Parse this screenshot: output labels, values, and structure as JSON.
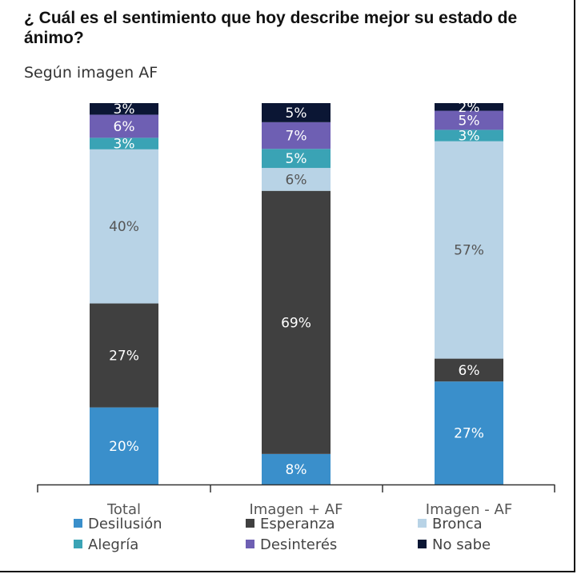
{
  "chart_data": {
    "type": "bar",
    "stacked": true,
    "title": "¿ Cuál es el sentimiento que hoy describe mejor su estado de ánimo?",
    "subtitle": "Según imagen AF",
    "categories": [
      "Total",
      "Imagen + AF",
      "Imagen - AF"
    ],
    "series": [
      {
        "name": "Desilusión",
        "color": "#3a8fcb",
        "values": [
          20,
          8,
          27
        ],
        "labels": [
          "20%",
          "8%",
          "27%"
        ]
      },
      {
        "name": "Esperanza",
        "color": "#404040",
        "values": [
          27,
          69,
          6
        ],
        "labels": [
          "27%",
          "69%",
          "6%"
        ]
      },
      {
        "name": "Bronca",
        "color": "#b8d3e6",
        "values": [
          40,
          6,
          57
        ],
        "labels": [
          "40%",
          "6%",
          "57%"
        ]
      },
      {
        "name": "Alegría",
        "color": "#3aa3b5",
        "values": [
          3,
          5,
          3
        ],
        "labels": [
          "3%",
          "5%",
          "3%"
        ]
      },
      {
        "name": "Desinterés",
        "color": "#6e5fb3",
        "values": [
          6,
          7,
          5
        ],
        "labels": [
          "6%",
          "7%",
          "5%"
        ]
      },
      {
        "name": "No sabe",
        "color": "#0b1634",
        "values": [
          3,
          5,
          2
        ],
        "labels": [
          "3%",
          "5%",
          "2%"
        ]
      }
    ],
    "legend_position": "bottom",
    "grid": false
  }
}
